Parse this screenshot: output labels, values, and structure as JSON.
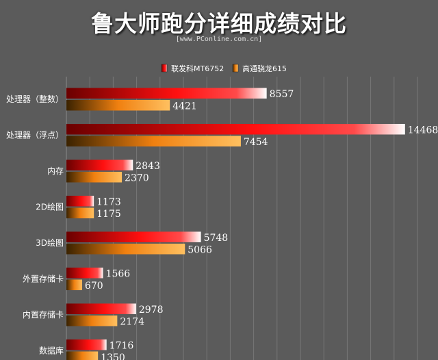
{
  "colors": {
    "background": "#5b5b5b",
    "series1_dark": "#6a0000",
    "series1_mid": "#ff1010",
    "series1_light": "#ffffff",
    "series2_dark": "#3a2200",
    "series2_mid": "#f08010",
    "series2_light": "#ffc060",
    "grid": "#777777"
  },
  "chart_data": {
    "type": "bar",
    "orientation": "horizontal",
    "title": "鲁大师跑分详细成绩对比",
    "subtitle": "[www.PConline.com.cn]",
    "legend_position": "top-right",
    "grid": true,
    "xlim": [
      0,
      15000
    ],
    "categories": [
      "处理器（整数）",
      "处理器（浮点）",
      "内存",
      "2D绘图",
      "3D绘图",
      "外置存储卡",
      "内置存储卡",
      "数据库"
    ],
    "series": [
      {
        "name": "联发科MT6752",
        "values": [
          8557,
          14468,
          2843,
          1173,
          5748,
          1566,
          2978,
          1716
        ]
      },
      {
        "name": "高通骁龙615",
        "values": [
          4421,
          7454,
          2370,
          1175,
          5066,
          670,
          2174,
          1350
        ]
      }
    ]
  }
}
